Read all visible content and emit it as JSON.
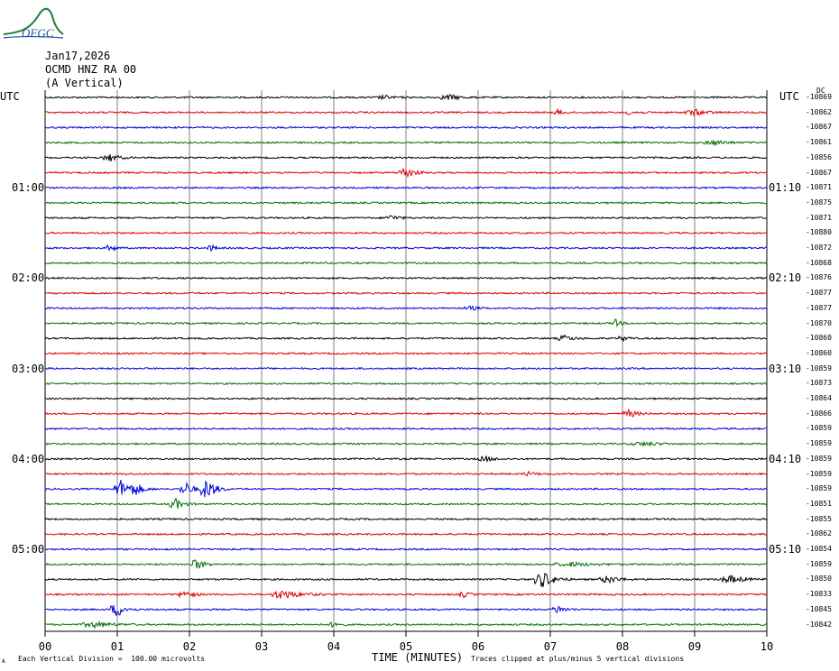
{
  "header": {
    "logo_text": "OFGC",
    "date": "Jan17,2026",
    "station": "OCMD HNZ RA 00",
    "component": "(A Vertical)",
    "utc_left": "UTC",
    "utc_right": "UTC",
    "right_top_label": "DC"
  },
  "footer": {
    "small_mark": "A",
    "scale_note": "Each Vertical Division =  100.00 microvolts",
    "xlabel": "TIME (MINUTES)",
    "clip_note": "Traces clipped at plus/minus 5 vertical divisions"
  },
  "colors": {
    "black": "#000000",
    "red": "#e00000",
    "blue": "#0000e0",
    "green": "#007000",
    "grid": "#808080",
    "logo": "#1a7f3c",
    "logo_text": "#1f4fa3"
  },
  "chart_data": {
    "type": "line",
    "title": "",
    "xlabel": "TIME (MINUTES)",
    "x_ticks": [
      "00",
      "01",
      "02",
      "03",
      "04",
      "05",
      "06",
      "07",
      "08",
      "09",
      "10"
    ],
    "xlim": [
      0,
      10
    ],
    "grid": true,
    "trace_color_cycle": [
      "black",
      "red",
      "blue",
      "green"
    ],
    "left_time_labels": [
      {
        "label": "01:00",
        "row": 6
      },
      {
        "label": "02:00",
        "row": 12
      },
      {
        "label": "03:00",
        "row": 18
      },
      {
        "label": "04:00",
        "row": 24
      },
      {
        "label": "05:00",
        "row": 30
      }
    ],
    "right_time_labels": [
      {
        "label": "01:10",
        "row": 6
      },
      {
        "label": "02:10",
        "row": 12
      },
      {
        "label": "03:10",
        "row": 18
      },
      {
        "label": "04:10",
        "row": 24
      },
      {
        "label": "05:10",
        "row": 30
      }
    ],
    "trace_offsets": [
      "-10869",
      "-10862",
      "-10867",
      "-10861",
      "-10856",
      "-10867",
      "-10871",
      "-10875",
      "-10871",
      "-10880",
      "-10872",
      "-10868",
      "-10876",
      "-10877",
      "-10877",
      "-10870",
      "-10860",
      "-10860",
      "-10859",
      "-10873",
      "-10864",
      "-10866",
      "-10859",
      "-10859",
      "-10859",
      "-10859",
      "-10859",
      "-10851",
      "-10855",
      "-10862",
      "-10854",
      "-10859",
      "-10850",
      "-10833",
      "-10845",
      "-10842"
    ],
    "events": [
      {
        "row": 0,
        "t": 4.7,
        "amp": 2,
        "dur": 0.3
      },
      {
        "row": 0,
        "t": 5.6,
        "amp": 3,
        "dur": 0.4
      },
      {
        "row": 1,
        "t": 7.1,
        "amp": 3,
        "dur": 0.2
      },
      {
        "row": 1,
        "t": 8.1,
        "amp": 2,
        "dur": 0.3
      },
      {
        "row": 1,
        "t": 9.0,
        "amp": 3,
        "dur": 0.5
      },
      {
        "row": 3,
        "t": 9.3,
        "amp": 2,
        "dur": 0.6
      },
      {
        "row": 4,
        "t": 0.9,
        "amp": 4,
        "dur": 0.3
      },
      {
        "row": 5,
        "t": 5.0,
        "amp": 7,
        "dur": 0.3
      },
      {
        "row": 8,
        "t": 4.8,
        "amp": 3,
        "dur": 0.3
      },
      {
        "row": 10,
        "t": 0.9,
        "amp": 4,
        "dur": 0.2
      },
      {
        "row": 10,
        "t": 2.3,
        "amp": 3,
        "dur": 0.2
      },
      {
        "row": 14,
        "t": 5.9,
        "amp": 2,
        "dur": 0.3
      },
      {
        "row": 15,
        "t": 7.9,
        "amp": 4,
        "dur": 0.2
      },
      {
        "row": 16,
        "t": 7.2,
        "amp": 3,
        "dur": 0.3
      },
      {
        "row": 16,
        "t": 8.0,
        "amp": 3,
        "dur": 0.2
      },
      {
        "row": 21,
        "t": 8.1,
        "amp": 4,
        "dur": 0.3
      },
      {
        "row": 23,
        "t": 8.3,
        "amp": 2,
        "dur": 0.6
      },
      {
        "row": 24,
        "t": 6.1,
        "amp": 3,
        "dur": 0.3
      },
      {
        "row": 25,
        "t": 6.7,
        "amp": 2,
        "dur": 0.3
      },
      {
        "row": 26,
        "t": 1.05,
        "amp": 10,
        "dur": 0.3
      },
      {
        "row": 26,
        "t": 1.25,
        "amp": 6,
        "dur": 0.3
      },
      {
        "row": 26,
        "t": 1.95,
        "amp": 7,
        "dur": 0.3
      },
      {
        "row": 26,
        "t": 2.25,
        "amp": 12,
        "dur": 0.3
      },
      {
        "row": 27,
        "t": 1.8,
        "amp": 6,
        "dur": 0.3
      },
      {
        "row": 31,
        "t": 2.1,
        "amp": 6,
        "dur": 0.3
      },
      {
        "row": 31,
        "t": 7.3,
        "amp": 2,
        "dur": 0.8
      },
      {
        "row": 32,
        "t": 6.9,
        "amp": 9,
        "dur": 0.4
      },
      {
        "row": 32,
        "t": 7.8,
        "amp": 4,
        "dur": 0.4
      },
      {
        "row": 32,
        "t": 9.5,
        "amp": 4,
        "dur": 0.5
      },
      {
        "row": 33,
        "t": 1.95,
        "amp": 4,
        "dur": 0.3
      },
      {
        "row": 33,
        "t": 3.3,
        "amp": 5,
        "dur": 0.6
      },
      {
        "row": 33,
        "t": 5.8,
        "amp": 3,
        "dur": 0.2
      },
      {
        "row": 34,
        "t": 1.0,
        "amp": 8,
        "dur": 0.3
      },
      {
        "row": 34,
        "t": 7.1,
        "amp": 4,
        "dur": 0.3
      },
      {
        "row": 35,
        "t": 0.7,
        "amp": 3,
        "dur": 0.6
      },
      {
        "row": 35,
        "t": 4.0,
        "amp": 3,
        "dur": 0.2
      }
    ]
  }
}
